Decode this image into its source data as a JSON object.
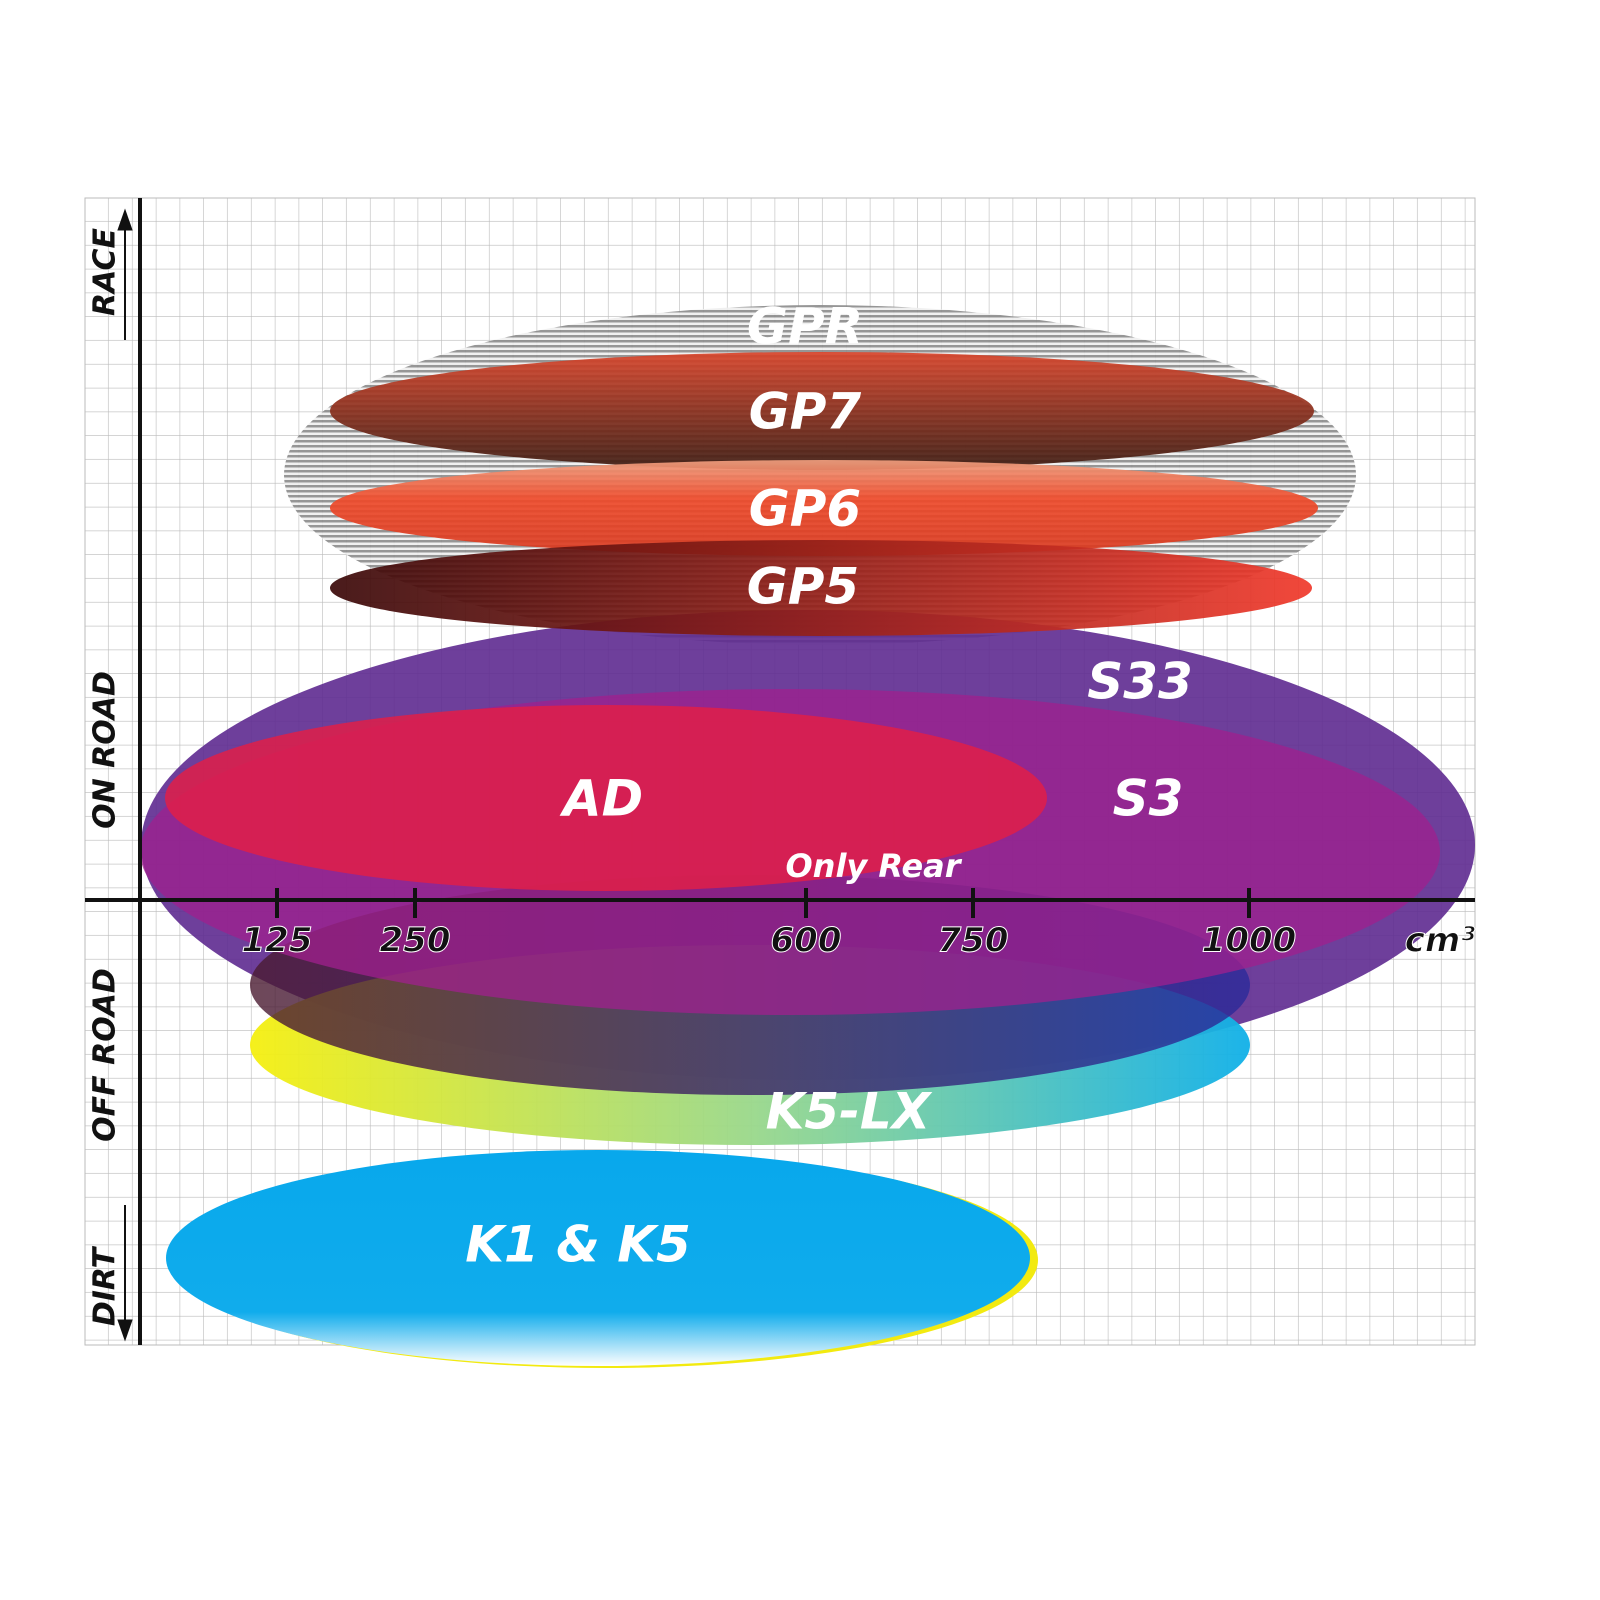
{
  "y_axis": {
    "labels": [
      "RACE",
      "ON ROAD",
      "OFF ROAD",
      "DIRT"
    ]
  },
  "x_axis": {
    "ticks": [
      "125",
      "250",
      "600",
      "750",
      "1000"
    ],
    "unit": "cm³"
  },
  "products": [
    {
      "label": "GPR"
    },
    {
      "label": "GP7"
    },
    {
      "label": "GP6"
    },
    {
      "label": "GP5"
    },
    {
      "label": "S33"
    },
    {
      "label": "S3"
    },
    {
      "label": "AD"
    },
    {
      "label": "K5-LX"
    },
    {
      "label": "K1 & K5"
    }
  ],
  "annotation": "Only Rear"
}
